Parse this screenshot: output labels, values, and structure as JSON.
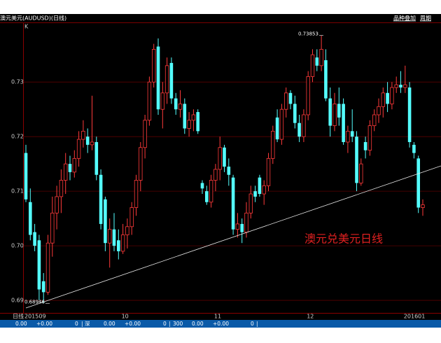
{
  "header": {
    "title": "澳元美元(AUDUSD)(日线)",
    "links": [
      "品种叠加",
      "周期"
    ]
  },
  "status_bar": [
    "0.00",
    "+0.00",
    "0",
    "|",
    "深",
    "0.00",
    "+0.00",
    "0",
    "|",
    "300",
    "0.00",
    "+0.00",
    "0",
    "|"
  ],
  "chart_data": {
    "type": "candlestick",
    "corner_label": "K",
    "x_axis_label": "日线",
    "text_annotation": "澳元兑美元日线",
    "up_color": "#ff3a3a",
    "down_color": "#54ffff",
    "grid": true,
    "ylim": [
      0.6877,
      0.7408
    ],
    "yticks": [
      0.69,
      {
        "value": 0.7,
        "label": "0.70"
      },
      0.71,
      0.72,
      0.73
    ],
    "annotations": [
      {
        "value": 0.73853,
        "label": "0.73853"
      },
      {
        "value": 0.68946,
        "label": "0.68946"
      }
    ],
    "categories": [
      "201509",
      null,
      null,
      null,
      null,
      null,
      null,
      null,
      null,
      null,
      null,
      null,
      null,
      null,
      null,
      null,
      null,
      null,
      null,
      null,
      null,
      null,
      "10",
      null,
      null,
      null,
      null,
      null,
      null,
      null,
      null,
      null,
      null,
      null,
      null,
      null,
      null,
      null,
      null,
      null,
      null,
      null,
      null,
      "11",
      null,
      null,
      null,
      null,
      null,
      null,
      null,
      null,
      null,
      null,
      null,
      null,
      null,
      null,
      null,
      null,
      null,
      null,
      null,
      null,
      "12",
      null,
      null,
      null,
      null,
      null,
      null,
      null,
      null,
      null,
      null,
      null,
      null,
      null,
      null,
      null,
      null,
      null,
      null,
      null,
      null,
      null,
      "201601",
      null,
      null,
      null,
      null
    ],
    "ohlc": [
      [
        0.717,
        0.7185,
        0.708,
        0.7085
      ],
      [
        0.708,
        0.7105,
        0.701,
        0.702
      ],
      [
        0.7025,
        0.704,
        0.699,
        0.7
      ],
      [
        0.701,
        0.702,
        0.69,
        0.692
      ],
      [
        0.6935,
        0.695,
        0.6895,
        0.6915
      ],
      [
        0.6915,
        0.702,
        0.691,
        0.7005
      ],
      [
        0.7005,
        0.709,
        0.698,
        0.706
      ],
      [
        0.706,
        0.711,
        0.703,
        0.709
      ],
      [
        0.709,
        0.714,
        0.706,
        0.712
      ],
      [
        0.712,
        0.717,
        0.7095,
        0.715
      ],
      [
        0.715,
        0.7165,
        0.712,
        0.7135
      ],
      [
        0.7135,
        0.7175,
        0.7125,
        0.716
      ],
      [
        0.716,
        0.721,
        0.7145,
        0.7195
      ],
      [
        0.7195,
        0.723,
        0.718,
        0.721
      ],
      [
        0.72,
        0.7215,
        0.717,
        0.7185
      ],
      [
        0.7185,
        0.7275,
        0.7175,
        0.719
      ],
      [
        0.719,
        0.72,
        0.712,
        0.713
      ],
      [
        0.713,
        0.714,
        0.703,
        0.704
      ],
      [
        0.7085,
        0.709,
        0.699,
        0.7005
      ],
      [
        0.7005,
        0.705,
        0.696,
        0.703
      ],
      [
        0.703,
        0.706,
        0.699,
        0.7
      ],
      [
        0.701,
        0.703,
        0.6975,
        0.699
      ],
      [
        0.699,
        0.704,
        0.6985,
        0.702
      ],
      [
        0.702,
        0.705,
        0.6995,
        0.7035
      ],
      [
        0.7035,
        0.708,
        0.702,
        0.707
      ],
      [
        0.707,
        0.713,
        0.7055,
        0.712
      ],
      [
        0.712,
        0.719,
        0.71,
        0.718
      ],
      [
        0.718,
        0.724,
        0.716,
        0.723
      ],
      [
        0.723,
        0.731,
        0.722,
        0.73
      ],
      [
        0.73,
        0.737,
        0.729,
        0.736
      ],
      [
        0.7365,
        0.738,
        0.724,
        0.725
      ],
      [
        0.725,
        0.73,
        0.7215,
        0.728
      ],
      [
        0.728,
        0.7345,
        0.726,
        0.733
      ],
      [
        0.7335,
        0.7345,
        0.726,
        0.727
      ],
      [
        0.727,
        0.728,
        0.724,
        0.725
      ],
      [
        0.725,
        0.7285,
        0.7235,
        0.726
      ],
      [
        0.726,
        0.727,
        0.7205,
        0.7215
      ],
      [
        0.7215,
        0.7245,
        0.72,
        0.723
      ],
      [
        0.723,
        0.725,
        0.721,
        0.724
      ],
      [
        0.7245,
        0.725,
        0.7205,
        0.721
      ],
      [
        0.7115,
        0.712,
        0.7095,
        0.7105
      ],
      [
        0.71,
        0.711,
        0.7075,
        0.708
      ],
      [
        0.708,
        0.713,
        0.707,
        0.712
      ],
      [
        0.712,
        0.715,
        0.71,
        0.714
      ],
      [
        0.714,
        0.72,
        0.712,
        0.718
      ],
      [
        0.718,
        0.7185,
        0.7135,
        0.7145
      ],
      [
        0.7145,
        0.716,
        0.711,
        0.713
      ],
      [
        0.7125,
        0.713,
        0.702,
        0.703
      ],
      [
        0.703,
        0.706,
        0.7015,
        0.704
      ],
      [
        0.704,
        0.705,
        0.7005,
        0.7025
      ],
      [
        0.7025,
        0.708,
        0.7015,
        0.706
      ],
      [
        0.706,
        0.711,
        0.705,
        0.7095
      ],
      [
        0.71,
        0.711,
        0.708,
        0.709
      ],
      [
        0.7125,
        0.713,
        0.709,
        0.7095
      ],
      [
        0.7095,
        0.712,
        0.7075,
        0.711
      ],
      [
        0.711,
        0.717,
        0.71,
        0.716
      ],
      [
        0.716,
        0.722,
        0.715,
        0.721
      ],
      [
        0.7235,
        0.725,
        0.719,
        0.7195
      ],
      [
        0.7195,
        0.726,
        0.7185,
        0.725
      ],
      [
        0.725,
        0.729,
        0.7235,
        0.728
      ],
      [
        0.728,
        0.7285,
        0.725,
        0.726
      ],
      [
        0.726,
        0.7275,
        0.7215,
        0.7225
      ],
      [
        0.7225,
        0.724,
        0.719,
        0.72
      ],
      [
        0.72,
        0.725,
        0.719,
        0.724
      ],
      [
        0.724,
        0.732,
        0.723,
        0.731
      ],
      [
        0.731,
        0.736,
        0.73,
        0.735
      ],
      [
        0.7345,
        0.736,
        0.732,
        0.733
      ],
      [
        0.733,
        0.73853,
        0.732,
        0.736
      ],
      [
        0.734,
        0.736,
        0.7265,
        0.727
      ],
      [
        0.727,
        0.729,
        0.72,
        0.722
      ],
      [
        0.722,
        0.728,
        0.721,
        0.726
      ],
      [
        0.726,
        0.729,
        0.722,
        0.7235
      ],
      [
        0.726,
        0.727,
        0.7185,
        0.719
      ],
      [
        0.719,
        0.722,
        0.717,
        0.721
      ],
      [
        0.721,
        0.725,
        0.719,
        0.72
      ],
      [
        0.72,
        0.721,
        0.71,
        0.7115
      ],
      [
        0.7115,
        0.716,
        0.711,
        0.715
      ],
      [
        0.719,
        0.72,
        0.716,
        0.7175
      ],
      [
        0.7175,
        0.723,
        0.7165,
        0.722
      ],
      [
        0.722,
        0.725,
        0.721,
        0.724
      ],
      [
        0.724,
        0.727,
        0.7225,
        0.7255
      ],
      [
        0.7255,
        0.729,
        0.7235,
        0.728
      ],
      [
        0.728,
        0.73,
        0.7245,
        0.726
      ],
      [
        0.726,
        0.73,
        0.725,
        0.729
      ],
      [
        0.729,
        0.731,
        0.728,
        0.7295
      ],
      [
        0.7295,
        0.732,
        0.728,
        0.729
      ],
      [
        0.729,
        0.733,
        0.728,
        0.7295
      ],
      [
        0.729,
        0.73,
        0.718,
        0.719
      ],
      [
        0.7185,
        0.719,
        0.716,
        0.717
      ],
      [
        0.716,
        0.7165,
        0.706,
        0.707
      ],
      [
        0.707,
        0.7085,
        0.7055,
        0.7075
      ]
    ]
  }
}
